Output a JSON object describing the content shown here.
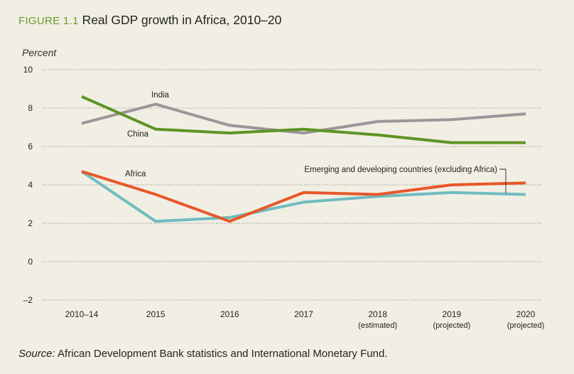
{
  "figure_number": "FIGURE 1.1",
  "title": "Real GDP growth in Africa, 2010–20",
  "source_label": "Source:",
  "source_text": " African Development Bank statistics and International Monetary Fund.",
  "chart_data": {
    "type": "line",
    "title": "Real GDP growth in Africa, 2010–20",
    "ylabel": "Percent",
    "xlabel": "",
    "ylim": [
      -2,
      10
    ],
    "yticks": [
      10,
      8,
      6,
      4,
      2,
      0,
      -2
    ],
    "ytick_labels": [
      "10",
      "8",
      "6",
      "4",
      "2",
      "0",
      "–2"
    ],
    "grid": true,
    "categories": [
      "2010–14",
      "2015",
      "2016",
      "2017",
      "2018",
      "2019",
      "2020"
    ],
    "category_sublabels": [
      "",
      "",
      "",
      "",
      "(estimated)",
      "(projected)",
      "(projected)"
    ],
    "series": [
      {
        "name": "India",
        "color": "#9a979a",
        "values": [
          7.2,
          8.2,
          7.1,
          6.7,
          7.3,
          7.4,
          7.7
        ]
      },
      {
        "name": "China",
        "color": "#5e9425",
        "values": [
          8.6,
          6.9,
          6.7,
          6.9,
          6.6,
          6.2,
          6.2
        ]
      },
      {
        "name": "Africa",
        "color": "#e8572a",
        "values": [
          4.7,
          3.5,
          2.1,
          3.6,
          3.5,
          4.0,
          4.1
        ]
      },
      {
        "name": "Emerging and developing countries (excluding Africa)",
        "color": "#6fbcc0",
        "values": [
          4.7,
          2.1,
          2.3,
          3.1,
          3.4,
          3.6,
          3.5
        ]
      }
    ]
  }
}
